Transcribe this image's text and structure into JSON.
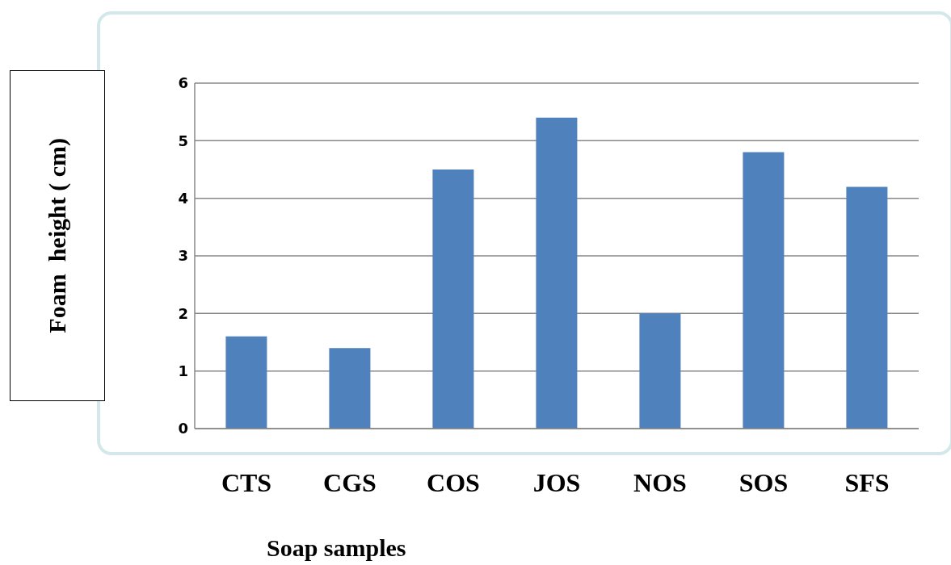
{
  "chart_data": {
    "type": "bar",
    "xlabel": "Soap samples",
    "ylabel": "Foam  height ( cm)",
    "categories": [
      "CTS",
      "CGS",
      "COS",
      "JOS",
      "NOS",
      "SOS",
      "SFS"
    ],
    "values": [
      1.6,
      1.4,
      4.5,
      5.4,
      2.0,
      4.8,
      4.2
    ],
    "color": "#4f81bd",
    "ylim": [
      0,
      6
    ],
    "yticks": [
      0,
      1,
      2,
      3,
      4,
      5,
      6
    ],
    "grid": "y"
  }
}
